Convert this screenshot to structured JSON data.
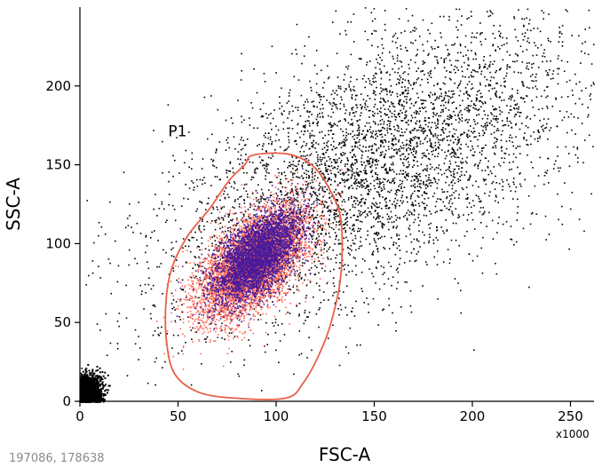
{
  "readout": "197086, 178638",
  "chart_data": {
    "type": "scatter",
    "title": "",
    "xlabel": "FSC-A",
    "ylabel": "SSC-A",
    "x_scale_label": "x1000",
    "xlim": [
      0,
      262
    ],
    "ylim": [
      0,
      250
    ],
    "x_ticks": [
      0,
      50,
      100,
      150,
      200,
      250
    ],
    "y_ticks": [
      0,
      50,
      100,
      150,
      200
    ],
    "x_tick_labels": [
      "0",
      "50",
      "100",
      "150",
      "200",
      "250"
    ],
    "y_tick_labels": [
      "0",
      "50",
      "100",
      "150",
      "200"
    ],
    "grid": false,
    "colors": {
      "ungated": "#000000",
      "gated_a": "#ff6a55",
      "gated_b": "#4a1a9a",
      "gate": "#e8604a"
    },
    "gate": {
      "name": "P1",
      "label_at": [
        45,
        168
      ],
      "polygon": [
        [
          88,
          156
        ],
        [
          105,
          157
        ],
        [
          118,
          150
        ],
        [
          127,
          135
        ],
        [
          133,
          115
        ],
        [
          133,
          80
        ],
        [
          128,
          50
        ],
        [
          122,
          30
        ],
        [
          114,
          12
        ],
        [
          105,
          2
        ],
        [
          79,
          2
        ],
        [
          60,
          6
        ],
        [
          48,
          18
        ],
        [
          44,
          40
        ],
        [
          44,
          65
        ],
        [
          47,
          85
        ],
        [
          55,
          105
        ],
        [
          66,
          122
        ],
        [
          76,
          140
        ],
        [
          84,
          150
        ]
      ]
    },
    "series": [
      {
        "kind": "ungated_diagonal",
        "color": "#000000",
        "count": 4600,
        "center": [
          150,
          150
        ],
        "spread_along": 120,
        "spread_across": 32
      },
      {
        "kind": "debris_corner",
        "color": "#000000",
        "count": 1400,
        "center": [
          3,
          6
        ],
        "spread": [
          4,
          6
        ]
      },
      {
        "kind": "gated_population",
        "color": "#ff6a55",
        "count": 5200,
        "center": [
          88,
          88
        ],
        "spread": [
          14,
          18
        ],
        "correlation": 0.6
      },
      {
        "kind": "gated_population",
        "color": "#4a1a9a",
        "count": 3800,
        "center": [
          90,
          92
        ],
        "spread": [
          11,
          15
        ],
        "correlation": 0.6
      }
    ]
  }
}
